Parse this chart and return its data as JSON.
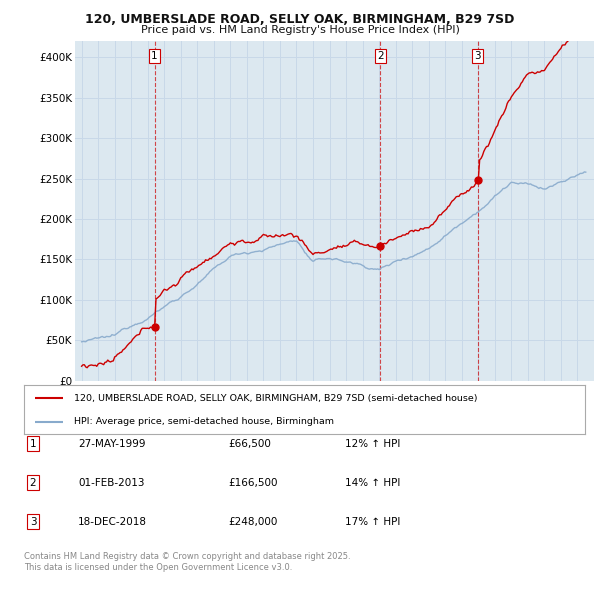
{
  "title_line1": "120, UMBERSLADE ROAD, SELLY OAK, BIRMINGHAM, B29 7SD",
  "title_line2": "Price paid vs. HM Land Registry's House Price Index (HPI)",
  "ylim": [
    0,
    420000
  ],
  "yticks": [
    0,
    50000,
    100000,
    150000,
    200000,
    250000,
    300000,
    350000,
    400000
  ],
  "ytick_labels": [
    "£0",
    "£50K",
    "£100K",
    "£150K",
    "£200K",
    "£250K",
    "£300K",
    "£350K",
    "£400K"
  ],
  "legend_label_red": "120, UMBERSLADE ROAD, SELLY OAK, BIRMINGHAM, B29 7SD (semi-detached house)",
  "legend_label_blue": "HPI: Average price, semi-detached house, Birmingham",
  "footnote": "Contains HM Land Registry data © Crown copyright and database right 2025.\nThis data is licensed under the Open Government Licence v3.0.",
  "sale1_year": 1999.41,
  "sale1_price": 66500,
  "sale2_year": 2013.08,
  "sale2_price": 166500,
  "sale3_year": 2018.96,
  "sale3_price": 248000,
  "red_color": "#cc0000",
  "blue_color": "#88aacc",
  "vline_color": "#cc0000",
  "grid_color": "#c8d8e8",
  "plot_bg_color": "#dce8f0",
  "footnote_color": "#888888",
  "table_rows": [
    {
      "label": "1",
      "date": "27-MAY-1999",
      "price": "£66,500",
      "pct": "12% ↑ HPI"
    },
    {
      "label": "2",
      "date": "01-FEB-2013",
      "price": "£166,500",
      "pct": "14% ↑ HPI"
    },
    {
      "label": "3",
      "date": "18-DEC-2018",
      "price": "£248,000",
      "pct": "17% ↑ HPI"
    }
  ]
}
